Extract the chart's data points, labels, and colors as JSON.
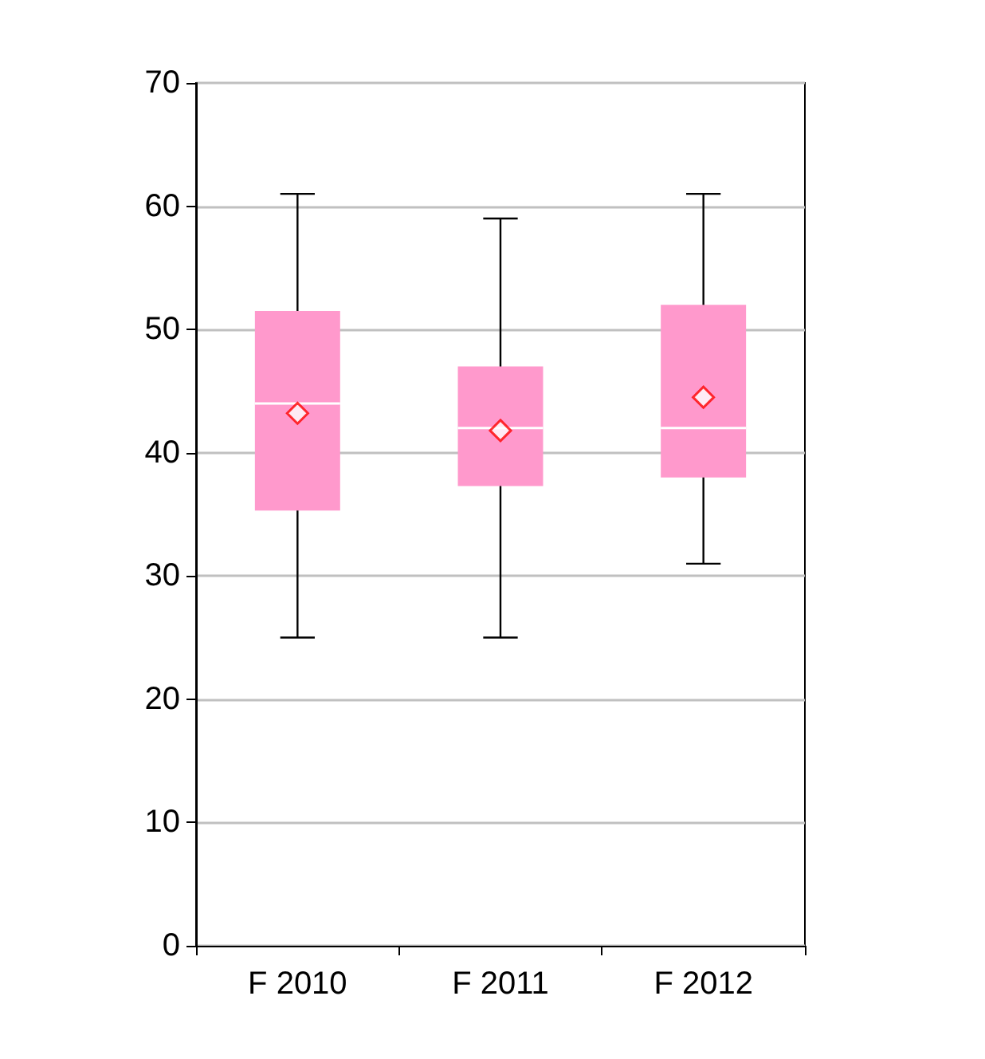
{
  "chart_data": {
    "type": "box",
    "categories": [
      "F 2010",
      "F 2011",
      "F 2012"
    ],
    "series": [
      {
        "color": "#ff99cc",
        "boxes": [
          {
            "low": 25,
            "q1": 35.3,
            "median": 44,
            "q3": 51.5,
            "high": 61,
            "mean": 43.2
          },
          {
            "low": 25,
            "q1": 37.3,
            "median": 42,
            "q3": 47,
            "high": 59,
            "mean": 41.8
          },
          {
            "low": 31,
            "q1": 38,
            "median": 42,
            "q3": 52,
            "high": 61,
            "mean": 44.5
          }
        ]
      }
    ],
    "ylim": [
      0,
      70
    ],
    "yticks": [
      0,
      10,
      20,
      30,
      40,
      50,
      60,
      70
    ],
    "grid": "y",
    "marker": "diamond"
  }
}
